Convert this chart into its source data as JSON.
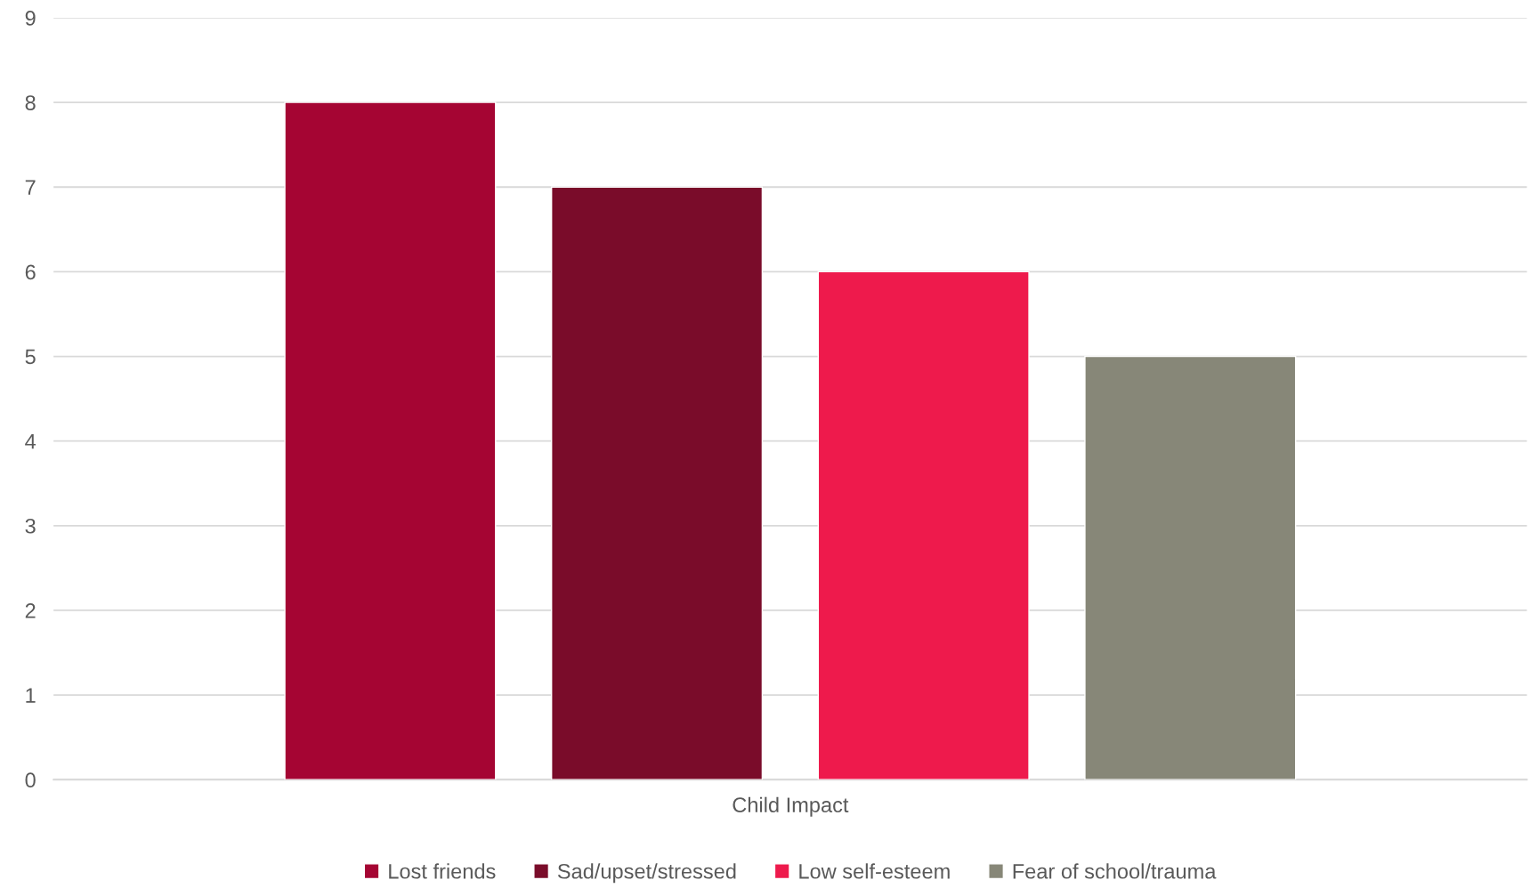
{
  "chart_data": {
    "type": "bar",
    "categories": [
      "Child Impact"
    ],
    "series": [
      {
        "name": "Lost friends",
        "color": "#a50533",
        "values": [
          8
        ]
      },
      {
        "name": "Sad/upset/stressed",
        "color": "#7a0c2a",
        "values": [
          7
        ]
      },
      {
        "name": "Low self-esteem",
        "color": "#ee1a4c",
        "values": [
          6
        ]
      },
      {
        "name": "Fear of school/trauma",
        "color": "#878778",
        "values": [
          5
        ]
      }
    ],
    "ylim": [
      0,
      9
    ],
    "yticks": [
      0,
      1,
      2,
      3,
      4,
      5,
      6,
      7,
      8,
      9
    ],
    "grid": "y",
    "legend": "bottom"
  }
}
